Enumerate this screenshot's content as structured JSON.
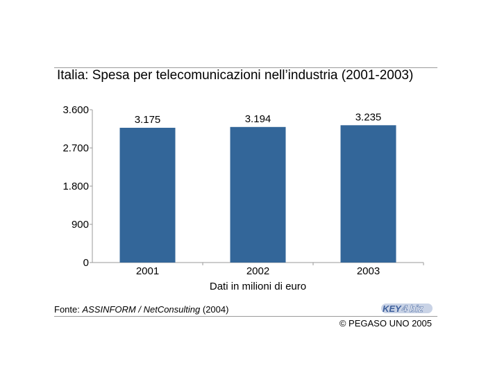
{
  "page": {
    "title": "Italia: Spesa per telecomunicazioni nell’industria (2001-2003)",
    "source_prefix": "Fonte: ",
    "source_italic": "ASSINFORM / NetConsulting",
    "source_suffix": " (2004)",
    "copyright": "© PEGASO UNO 2005",
    "logo_text": "KEY4biz"
  },
  "colors": {
    "bar": "#336699",
    "axis": "#999999",
    "rule": "#9a9a9a"
  },
  "chart_data": {
    "type": "bar",
    "title": "Italia: Spesa per telecomunicazioni nell’industria (2001-2003)",
    "categories": [
      "2001",
      "2002",
      "2003"
    ],
    "values": [
      3175,
      3194,
      3235
    ],
    "value_labels": [
      "3.175",
      "3.194",
      "3.235"
    ],
    "xlabel": "Dati in milioni di euro",
    "ylabel": "",
    "ylim": [
      0,
      3600
    ],
    "yticks": [
      0,
      900,
      1800,
      2700,
      3600
    ],
    "ytick_labels": [
      "0",
      "900",
      "1.800",
      "2.700",
      "3.600"
    ],
    "grid": false,
    "legend": "none"
  }
}
